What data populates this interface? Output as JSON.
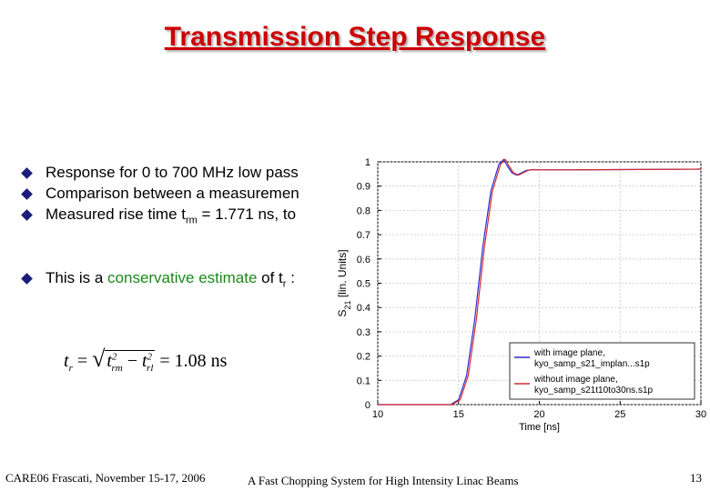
{
  "slide": {
    "title": "Transmission Step Response",
    "bullets": [
      {
        "text": "Response for 0 to 700 MHz low pass"
      },
      {
        "text": "Comparison between a measuremen"
      },
      {
        "pre": "Measured rise time t",
        "sub": "rm",
        "post": " = 1.771 ns, to"
      },
      {
        "pre": "This is a ",
        "highlight": "conservative estimate",
        "mid": " of t",
        "sub": "r",
        "post": " :"
      }
    ],
    "formula": {
      "lhs": "t",
      "lhs_sub": "r",
      "eq": " = ",
      "radicand_a": "t",
      "a_sub": "rm",
      "a_sup": "2",
      "minus": " − ",
      "radicand_b": "t",
      "b_sub": "rl",
      "b_sup": "2",
      "result": " = 1.08 ns"
    },
    "footer": {
      "left": "CARE06 Frascati, November 15-17, 2006",
      "center": "A Fast Chopping System for High Intensity Linac Beams",
      "page": "13"
    },
    "colors": {
      "title": "#cc0000",
      "highlight": "#1a8a1a",
      "bullet": "#1c1c7a"
    }
  },
  "chart_data": {
    "type": "line",
    "xlabel": "Time [ns]",
    "ylabel_main": "S",
    "ylabel_sub": "21",
    "ylabel_rest": " [lin. Units]",
    "xlim": [
      10,
      30
    ],
    "ylim": [
      0,
      1
    ],
    "x_ticks": [
      10,
      15,
      20,
      25,
      30
    ],
    "y_ticks": [
      0,
      0.1,
      0.2,
      0.3,
      0.4,
      0.5,
      0.6,
      0.7,
      0.8,
      0.9,
      1
    ],
    "legend_position": "bottom-right",
    "series": [
      {
        "name": "with image plane,",
        "name2": "kyo_samp_s21_implan...s1p",
        "color": "#2b2bd4",
        "x": [
          10,
          14.5,
          15.0,
          15.5,
          16.0,
          16.5,
          17.0,
          17.5,
          17.8,
          18.0,
          18.3,
          18.6,
          18.9,
          19.2,
          19.6,
          20,
          22,
          25,
          30
        ],
        "y": [
          0,
          0.0,
          0.02,
          0.12,
          0.35,
          0.65,
          0.88,
          0.99,
          1.01,
          0.985,
          0.955,
          0.945,
          0.955,
          0.965,
          0.968,
          0.967,
          0.967,
          0.968,
          0.97
        ]
      },
      {
        "name": "without image plane,",
        "name2": "kyo_samp_s21t10to30ns.s1p",
        "color": "#d42b2b",
        "x": [
          10,
          14.6,
          15.1,
          15.6,
          16.1,
          16.6,
          17.1,
          17.6,
          17.9,
          18.1,
          18.4,
          18.7,
          19.0,
          19.3,
          19.7,
          20,
          22,
          25,
          30
        ],
        "y": [
          0,
          0.0,
          0.02,
          0.12,
          0.35,
          0.65,
          0.88,
          0.99,
          1.01,
          0.985,
          0.955,
          0.945,
          0.955,
          0.965,
          0.968,
          0.967,
          0.967,
          0.968,
          0.97
        ]
      }
    ]
  }
}
